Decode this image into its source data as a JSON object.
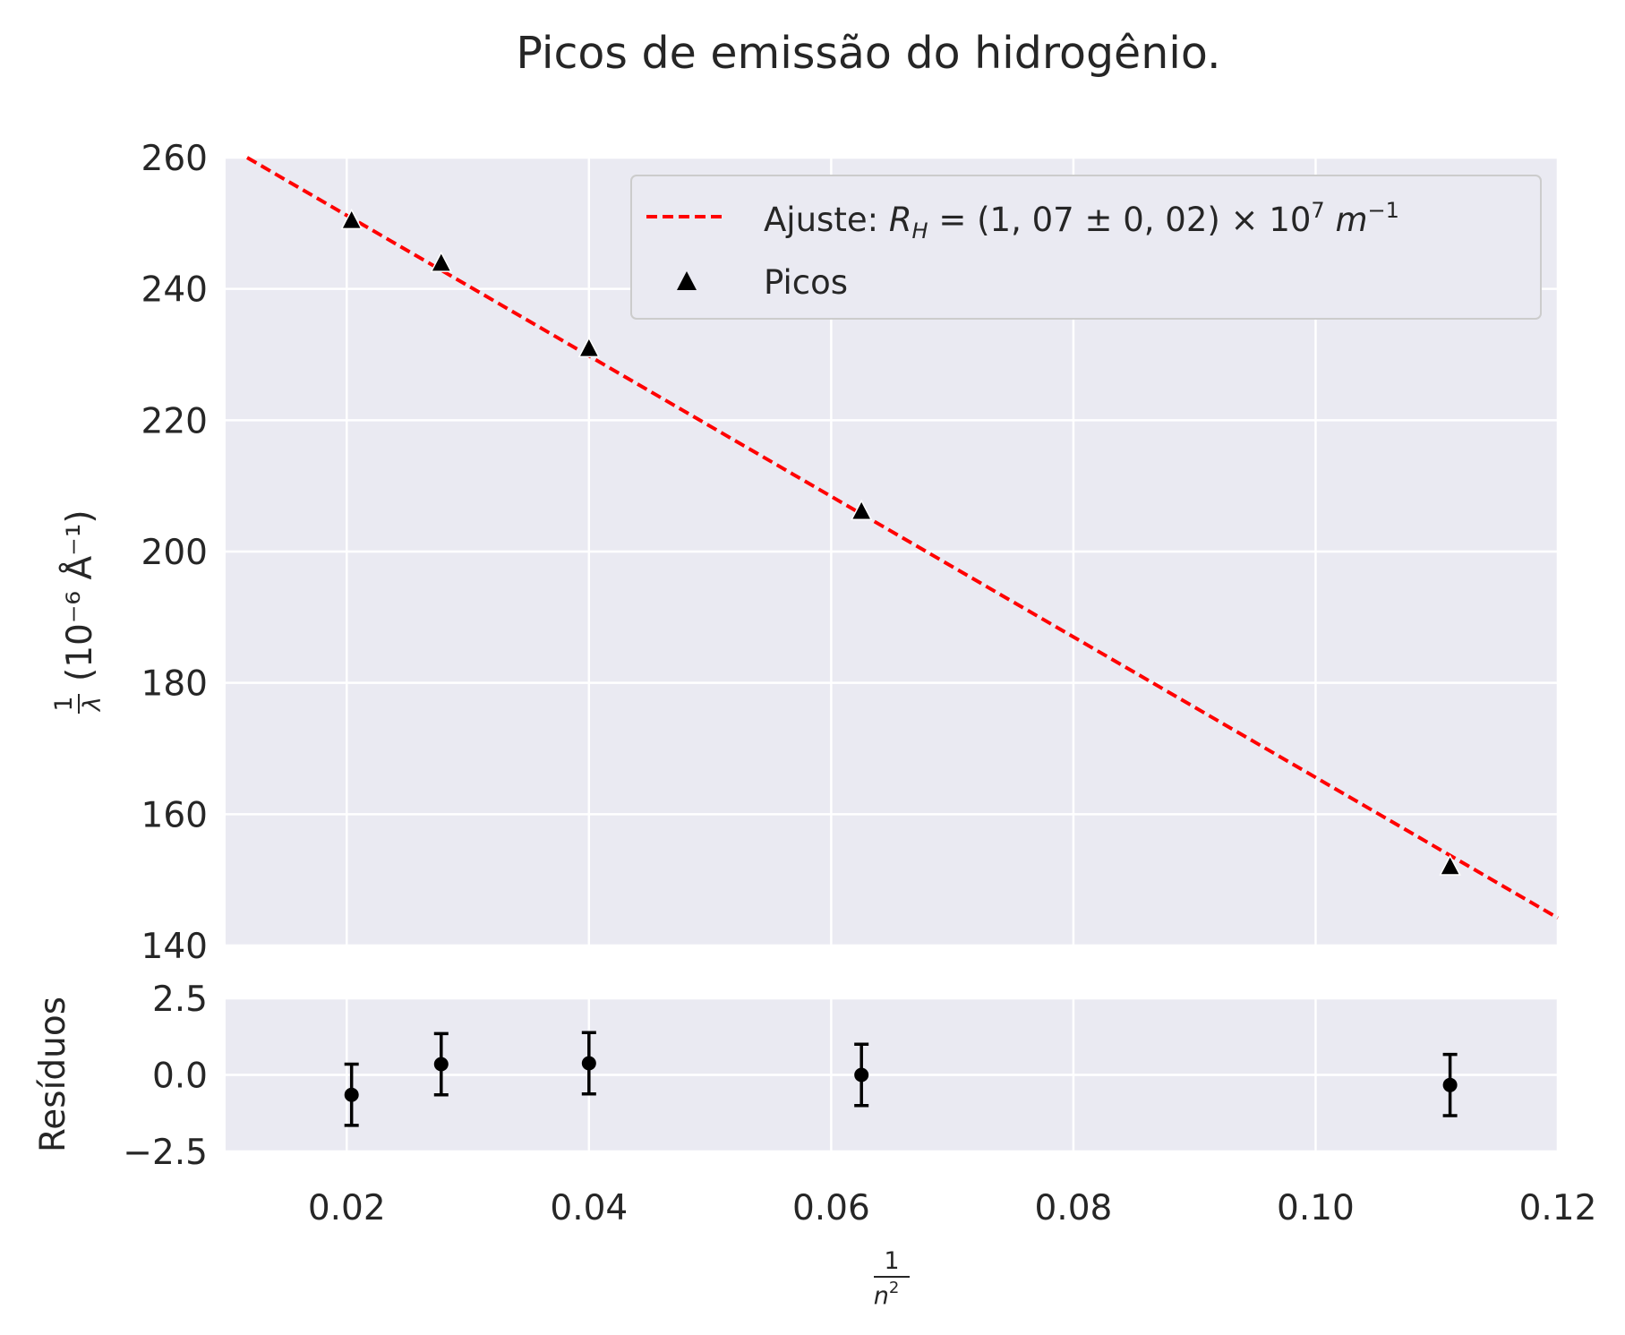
{
  "chart_data": [
    {
      "type": "scatter",
      "title": "Picos de emissão do hidrogênio.",
      "ylabel": "1/λ (10⁻⁶ Å⁻¹)",
      "ylabel_fraction": {
        "num": "1",
        "den": "λ"
      },
      "ylabel_rest": "(10⁻⁶ Å⁻¹)",
      "xlim": [
        0.01,
        0.12
      ],
      "ylim": [
        140,
        260
      ],
      "yticks": [
        140,
        160,
        180,
        200,
        220,
        240,
        260
      ],
      "grid": true,
      "legend_position": "top-right",
      "series": [
        {
          "name": "Ajuste: R_H = (1,07 ± 0,02) × 10⁷ m⁻¹",
          "kind": "fit-line",
          "style": "dashed",
          "color": "#ff0000",
          "equation": {
            "slope": -1070,
            "intercept": 272.6
          }
        },
        {
          "name": "Picos",
          "kind": "points",
          "marker": "triangle",
          "color": "#000000",
          "x": [
            0.0204,
            0.0278,
            0.04,
            0.0625,
            0.1111
          ],
          "y": [
            250.4,
            243.9,
            230.9,
            206.1,
            152.0
          ]
        }
      ]
    },
    {
      "type": "scatter",
      "ylabel": "Resíduos",
      "xlabel": "1/n²",
      "xlabel_fraction": {
        "num": "1",
        "den": "n",
        "den_sup": "2"
      },
      "xlim": [
        0.01,
        0.12
      ],
      "ylim": [
        -2.5,
        2.5
      ],
      "xticks": [
        "0.02",
        "0.04",
        "0.06",
        "0.08",
        "0.10",
        "0.12"
      ],
      "yticks": [
        "−2.5",
        "0.0",
        "2.5"
      ],
      "grid": true,
      "series": [
        {
          "name": "",
          "kind": "errorbar",
          "color": "#000000",
          "x": [
            0.0204,
            0.0278,
            0.04,
            0.0625,
            0.1111
          ],
          "y": [
            -0.65,
            0.35,
            0.38,
            0.0,
            -0.33
          ],
          "err": [
            1.0,
            1.0,
            1.0,
            1.0,
            1.0
          ]
        }
      ]
    }
  ]
}
